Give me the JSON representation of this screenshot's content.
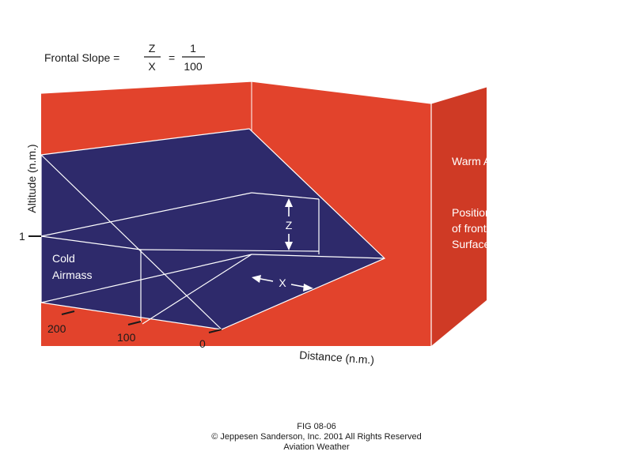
{
  "formula": {
    "lhs": "Frontal Slope =",
    "frac1_num": "Z",
    "frac1_den": "X",
    "equals": "=",
    "frac2_num": "1",
    "frac2_den": "100"
  },
  "labels": {
    "warm_airmass": "Warm Airmass",
    "position_line1": "Position",
    "position_line2": "of front on",
    "position_line3": "Surface Map",
    "cold_line1": "Cold",
    "cold_line2": "Airmass",
    "z": "Z",
    "x": "X"
  },
  "axes": {
    "altitude_label": "Altitude (n.m.)",
    "altitude_tick": "1",
    "distance_label": "Distance (n.m.)",
    "distance_ticks": [
      "200",
      "100",
      "0"
    ]
  },
  "caption": {
    "fig": "FIG 08-06",
    "copyright": "© Jeppesen Sanderson, Inc. 2001 All Rights Reserved",
    "publication": "Aviation Weather"
  },
  "colors": {
    "warm": "#e2432c",
    "cold": "#2e2a6b",
    "lines": "#ffffff"
  }
}
